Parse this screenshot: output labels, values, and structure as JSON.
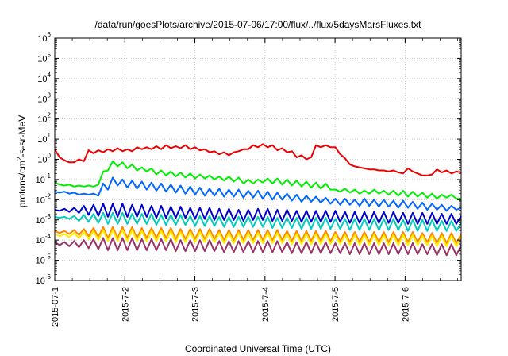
{
  "chart_data": {
    "type": "line",
    "title": "/data/run/goesPlots/archive/2015-07-06/17:00/flux/../flux/5daysMarsFluxes.txt",
    "xlabel": "Coordinated Universal Time (UTC)",
    "ylabel_parts": [
      "protons/cm",
      "2",
      "-s-sr-MeV"
    ],
    "y_scale": "log",
    "ylim_exponents": [
      -6,
      6
    ],
    "y_tick_labels": [
      {
        "base": "10",
        "exp": "6"
      },
      {
        "base": "10",
        "exp": "5"
      },
      {
        "base": "10",
        "exp": "4"
      },
      {
        "base": "10",
        "exp": "3"
      },
      {
        "base": "10",
        "exp": "2"
      },
      {
        "base": "10",
        "exp": "1"
      },
      {
        "base": "10",
        "exp": "0"
      },
      {
        "base": "10",
        "exp": "-1"
      },
      {
        "base": "10",
        "exp": "-2"
      },
      {
        "base": "10",
        "exp": "-3"
      },
      {
        "base": "10",
        "exp": "-4"
      },
      {
        "base": "10",
        "exp": "-5"
      },
      {
        "base": "10",
        "exp": "-6"
      }
    ],
    "x_range_days": [
      0,
      5.8
    ],
    "x_ticks": [
      {
        "label": "2015-07-1",
        "day": 0
      },
      {
        "label": "2015-7-2",
        "day": 1
      },
      {
        "label": "2015-7-3",
        "day": 2
      },
      {
        "label": "2015-7-4",
        "day": 3
      },
      {
        "label": "2015-7-5",
        "day": 4
      },
      {
        "label": "2015-7-6",
        "day": 5
      }
    ],
    "grid": true,
    "legend": "none",
    "series": [
      {
        "color": "#ee0000",
        "log_values": [
          0.5,
          0.1,
          -0.05,
          -0.15,
          -0.15,
          0.0,
          -0.1,
          0.45,
          0.3,
          0.45,
          0.35,
          0.5,
          0.4,
          0.55,
          0.4,
          0.5,
          0.4,
          0.6,
          0.5,
          0.6,
          0.5,
          0.65,
          0.5,
          0.7,
          0.55,
          0.65,
          0.55,
          0.7,
          0.5,
          0.6,
          0.45,
          0.5,
          0.35,
          0.4,
          0.25,
          0.35,
          0.2,
          0.35,
          0.4,
          0.5,
          0.5,
          0.7,
          0.6,
          0.75,
          0.6,
          0.7,
          0.45,
          0.55,
          0.35,
          0.4,
          0.1,
          0.2,
          0.0,
          0.1,
          0.7,
          0.6,
          0.7,
          0.6,
          0.6,
          0.25,
          0.05,
          -0.25,
          -0.35,
          -0.4,
          -0.45,
          -0.5,
          -0.5,
          -0.55,
          -0.55,
          -0.6,
          -0.55,
          -0.65,
          -0.7,
          -0.45,
          -0.6,
          -0.7,
          -0.8,
          -0.8,
          -0.75,
          -0.5,
          -0.65,
          -0.55,
          -0.7,
          -0.6,
          -0.65
        ]
      },
      {
        "color": "#00ee00",
        "log_values": [
          -1.15,
          -1.25,
          -1.3,
          -1.25,
          -1.35,
          -1.3,
          -1.35,
          -1.3,
          -1.35,
          -1.25,
          -0.6,
          -0.55,
          -0.1,
          -0.35,
          -0.15,
          -0.45,
          -0.25,
          -0.55,
          -0.4,
          -0.6,
          -0.45,
          -0.75,
          -0.55,
          -0.8,
          -0.6,
          -0.85,
          -0.65,
          -0.9,
          -0.7,
          -0.95,
          -0.75,
          -0.95,
          -0.8,
          -1.0,
          -0.85,
          -1.05,
          -0.85,
          -1.1,
          -0.9,
          -1.2,
          -1.0,
          -1.2,
          -1.0,
          -1.15,
          -0.95,
          -1.2,
          -0.95,
          -1.25,
          -1.0,
          -1.3,
          -1.05,
          -1.35,
          -1.1,
          -1.4,
          -1.15,
          -1.45,
          -1.2,
          -1.5,
          -1.5,
          -1.6,
          -1.45,
          -1.65,
          -1.5,
          -1.7,
          -1.55,
          -1.7,
          -1.5,
          -1.7,
          -1.55,
          -1.75,
          -1.55,
          -1.8,
          -1.55,
          -1.85,
          -1.6,
          -1.85,
          -1.65,
          -1.9,
          -1.7,
          -1.95,
          -1.75,
          -1.9,
          -1.75,
          -1.95,
          -1.95
        ]
      },
      {
        "color": "#0066ff",
        "log_values": [
          -1.6,
          -1.65,
          -1.6,
          -1.7,
          -1.65,
          -1.75,
          -1.7,
          -1.75,
          -1.7,
          -1.8,
          -1.2,
          -1.5,
          -0.9,
          -1.3,
          -1.0,
          -1.4,
          -1.05,
          -1.45,
          -1.1,
          -1.5,
          -1.15,
          -1.55,
          -1.2,
          -1.6,
          -1.25,
          -1.65,
          -1.3,
          -1.7,
          -1.35,
          -1.75,
          -1.4,
          -1.8,
          -1.45,
          -1.8,
          -1.45,
          -1.85,
          -1.5,
          -1.85,
          -1.5,
          -1.9,
          -1.55,
          -1.9,
          -1.55,
          -1.95,
          -1.6,
          -2.0,
          -1.65,
          -2.0,
          -1.7,
          -2.05,
          -1.75,
          -2.1,
          -1.8,
          -2.1,
          -1.85,
          -2.15,
          -1.9,
          -2.2,
          -1.95,
          -2.25,
          -1.95,
          -2.25,
          -2.0,
          -2.3,
          -1.95,
          -2.3,
          -2.0,
          -2.35,
          -2.0,
          -2.35,
          -2.05,
          -2.4,
          -2.05,
          -2.4,
          -2.1,
          -2.45,
          -2.15,
          -2.5,
          -2.2,
          -2.5,
          -2.25,
          -2.55,
          -2.3,
          -2.5,
          -2.4
        ]
      },
      {
        "color": "#0000cc",
        "log_values": [
          -2.5,
          -2.55,
          -2.45,
          -2.6,
          -2.4,
          -2.65,
          -2.3,
          -2.75,
          -2.25,
          -2.8,
          -2.2,
          -2.85,
          -2.2,
          -2.85,
          -2.2,
          -2.85,
          -2.25,
          -2.85,
          -2.25,
          -2.85,
          -2.3,
          -2.9,
          -2.3,
          -2.9,
          -2.35,
          -2.9,
          -2.35,
          -2.9,
          -2.4,
          -2.95,
          -2.4,
          -2.95,
          -2.4,
          -3.0,
          -2.45,
          -3.0,
          -2.45,
          -3.0,
          -2.5,
          -3.05,
          -2.5,
          -3.0,
          -2.45,
          -3.0,
          -2.45,
          -3.05,
          -2.5,
          -3.05,
          -2.5,
          -3.05,
          -2.55,
          -3.1,
          -2.55,
          -3.1,
          -2.55,
          -3.1,
          -2.55,
          -3.1,
          -2.55,
          -3.1,
          -2.6,
          -3.15,
          -2.6,
          -3.15,
          -2.6,
          -3.15,
          -2.6,
          -3.15,
          -2.6,
          -3.15,
          -2.6,
          -3.15,
          -2.65,
          -3.2,
          -2.65,
          -3.2,
          -2.65,
          -3.2,
          -2.65,
          -3.2,
          -2.7,
          -3.2,
          -2.7,
          -3.2,
          -2.8
        ]
      },
      {
        "color": "#00ccbb",
        "log_values": [
          -2.85,
          -2.9,
          -2.85,
          -2.95,
          -2.8,
          -3.05,
          -2.75,
          -3.1,
          -2.7,
          -3.15,
          -2.65,
          -3.2,
          -2.65,
          -3.2,
          -2.65,
          -3.2,
          -2.7,
          -3.2,
          -2.7,
          -3.2,
          -2.7,
          -3.25,
          -2.75,
          -3.25,
          -2.75,
          -3.25,
          -2.75,
          -3.25,
          -2.8,
          -3.3,
          -2.8,
          -3.3,
          -2.8,
          -3.3,
          -2.85,
          -3.35,
          -2.85,
          -3.35,
          -2.85,
          -3.35,
          -2.85,
          -3.35,
          -2.85,
          -3.35,
          -2.85,
          -3.4,
          -2.9,
          -3.4,
          -2.9,
          -3.4,
          -2.9,
          -3.45,
          -2.9,
          -3.45,
          -2.9,
          -3.45,
          -2.9,
          -3.45,
          -2.95,
          -3.45,
          -2.95,
          -3.5,
          -2.95,
          -3.5,
          -2.95,
          -3.5,
          -2.95,
          -3.5,
          -2.95,
          -3.5,
          -2.95,
          -3.5,
          -3.0,
          -3.55,
          -3.0,
          -3.55,
          -3.0,
          -3.55,
          -3.0,
          -3.55,
          -3.05,
          -3.55,
          -3.05,
          -3.55,
          -3.15
        ]
      },
      {
        "color": "#ff8800",
        "log_values": [
          -3.55,
          -3.65,
          -3.55,
          -3.7,
          -3.5,
          -3.75,
          -3.45,
          -3.8,
          -3.4,
          -3.85,
          -3.35,
          -3.9,
          -3.35,
          -3.9,
          -3.35,
          -3.9,
          -3.35,
          -3.9,
          -3.4,
          -3.9,
          -3.4,
          -3.9,
          -3.4,
          -3.9,
          -3.4,
          -3.95,
          -3.45,
          -3.95,
          -3.45,
          -3.95,
          -3.45,
          -3.95,
          -3.45,
          -3.95,
          -3.5,
          -4.0,
          -3.5,
          -4.0,
          -3.5,
          -4.0,
          -3.5,
          -4.0,
          -3.5,
          -4.0,
          -3.5,
          -4.0,
          -3.5,
          -4.0,
          -3.55,
          -4.05,
          -3.55,
          -4.05,
          -3.55,
          -4.05,
          -3.55,
          -4.05,
          -3.55,
          -4.05,
          -3.6,
          -4.05,
          -3.6,
          -4.1,
          -3.6,
          -4.1,
          -3.6,
          -4.1,
          -3.6,
          -4.1,
          -3.6,
          -4.1,
          -3.6,
          -4.1,
          -3.6,
          -4.1,
          -3.6,
          -4.1,
          -3.65,
          -4.1,
          -3.65,
          -4.15,
          -3.65,
          -4.15,
          -3.65,
          -4.15,
          -3.7
        ]
      },
      {
        "color": "#ffee00",
        "log_values": [
          -3.7,
          -3.8,
          -3.7,
          -3.85,
          -3.65,
          -3.9,
          -3.6,
          -3.95,
          -3.55,
          -4.0,
          -3.5,
          -4.05,
          -3.5,
          -4.05,
          -3.5,
          -4.05,
          -3.5,
          -4.05,
          -3.55,
          -4.05,
          -3.55,
          -4.05,
          -3.55,
          -4.05,
          -3.55,
          -4.1,
          -3.6,
          -4.1,
          -3.6,
          -4.1,
          -3.6,
          -4.1,
          -3.6,
          -4.1,
          -3.65,
          -4.15,
          -3.65,
          -4.15,
          -3.65,
          -4.15,
          -3.65,
          -4.15,
          -3.65,
          -4.15,
          -3.65,
          -4.15,
          -3.65,
          -4.15,
          -3.7,
          -4.2,
          -3.7,
          -4.2,
          -3.7,
          -4.2,
          -3.7,
          -4.2,
          -3.7,
          -4.2,
          -3.75,
          -4.2,
          -3.75,
          -4.25,
          -3.75,
          -4.25,
          -3.75,
          -4.25,
          -3.75,
          -4.25,
          -3.75,
          -4.25,
          -3.75,
          -4.25,
          -3.75,
          -4.25,
          -3.75,
          -4.25,
          -3.8,
          -4.25,
          -3.8,
          -4.3,
          -3.8,
          -4.3,
          -3.8,
          -4.3,
          -3.85
        ]
      },
      {
        "color": "#993366",
        "log_values": [
          -4.1,
          -4.25,
          -4.1,
          -4.3,
          -4.05,
          -4.35,
          -4.0,
          -4.4,
          -3.95,
          -4.45,
          -3.9,
          -4.5,
          -3.9,
          -4.5,
          -3.9,
          -4.5,
          -3.9,
          -4.5,
          -3.95,
          -4.5,
          -3.95,
          -4.5,
          -3.95,
          -4.5,
          -3.95,
          -4.55,
          -4.0,
          -4.55,
          -4.0,
          -4.55,
          -4.0,
          -4.55,
          -4.0,
          -4.55,
          -4.05,
          -4.6,
          -4.05,
          -4.6,
          -4.05,
          -4.6,
          -4.05,
          -4.6,
          -4.05,
          -4.6,
          -4.05,
          -4.6,
          -4.05,
          -4.6,
          -4.1,
          -4.65,
          -4.1,
          -4.65,
          -4.1,
          -4.65,
          -4.1,
          -4.65,
          -4.1,
          -4.65,
          -4.15,
          -4.65,
          -4.15,
          -4.7,
          -4.15,
          -4.7,
          -4.15,
          -4.7,
          -4.15,
          -4.7,
          -4.15,
          -4.7,
          -4.15,
          -4.7,
          -4.15,
          -4.7,
          -4.15,
          -4.7,
          -4.2,
          -4.7,
          -4.2,
          -4.75,
          -4.2,
          -4.75,
          -4.2,
          -4.75,
          -4.25
        ]
      }
    ]
  }
}
